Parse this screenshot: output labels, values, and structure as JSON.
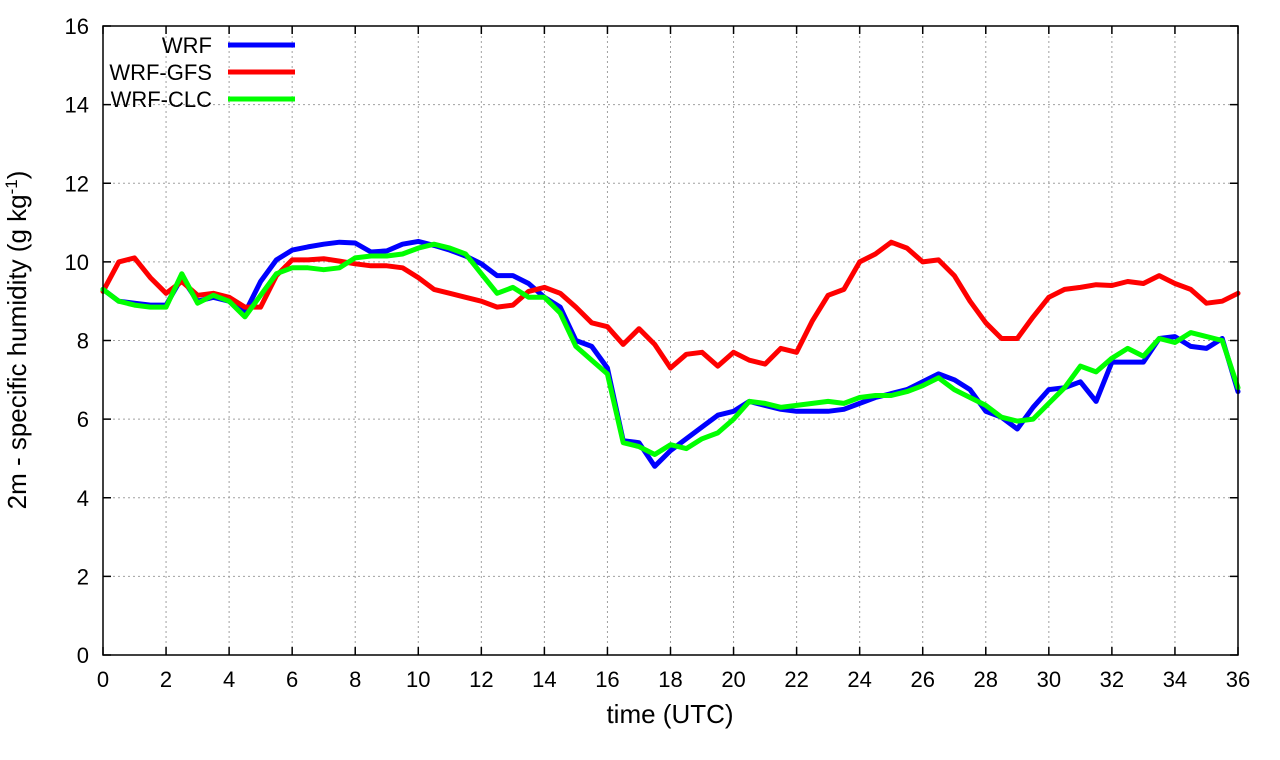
{
  "chart_data": {
    "type": "line",
    "title": "",
    "xlabel": "time (UTC)",
    "ylabel": {
      "base": "2m - specific humidity (g kg",
      "sup": "-1",
      "end": ")"
    },
    "xlim": [
      0,
      36
    ],
    "ylim": [
      0,
      16
    ],
    "xticks": [
      0,
      2,
      4,
      6,
      8,
      10,
      12,
      14,
      16,
      18,
      20,
      22,
      24,
      26,
      28,
      30,
      32,
      34,
      36
    ],
    "yticks": [
      0,
      2,
      4,
      6,
      8,
      10,
      12,
      14,
      16
    ],
    "grid": true,
    "legend": "top-left",
    "x": [
      0,
      0.5,
      1,
      1.5,
      2,
      2.5,
      3,
      3.5,
      4,
      4.5,
      5,
      5.5,
      6,
      6.5,
      7,
      7.5,
      8,
      8.5,
      9,
      9.5,
      10,
      10.5,
      11,
      11.5,
      12,
      12.5,
      13,
      13.5,
      14,
      14.5,
      15,
      15.5,
      16,
      16.5,
      17,
      17.5,
      18,
      18.5,
      19,
      19.5,
      20,
      20.5,
      21,
      21.5,
      22,
      22.5,
      23,
      23.5,
      24,
      24.5,
      25,
      25.5,
      26,
      26.5,
      27,
      27.5,
      28,
      28.5,
      29,
      29.5,
      30,
      30.5,
      31,
      31.5,
      32,
      32.5,
      33,
      33.5,
      34,
      34.5,
      35,
      35.5,
      36
    ],
    "series": [
      {
        "name": "WRF",
        "color": "#0000ff",
        "values": [
          9.3,
          9.0,
          8.95,
          8.9,
          8.9,
          9.6,
          9.0,
          9.1,
          9.0,
          8.7,
          9.5,
          10.05,
          10.3,
          10.38,
          10.45,
          10.5,
          10.48,
          10.25,
          10.28,
          10.45,
          10.52,
          10.42,
          10.3,
          10.15,
          9.95,
          9.65,
          9.65,
          9.45,
          9.1,
          8.85,
          8.0,
          7.85,
          7.3,
          5.45,
          5.4,
          4.8,
          5.2,
          5.5,
          5.8,
          6.1,
          6.2,
          6.45,
          6.35,
          6.25,
          6.2,
          6.2,
          6.2,
          6.25,
          6.4,
          6.55,
          6.65,
          6.75,
          6.95,
          7.15,
          7.0,
          6.75,
          6.2,
          6.05,
          5.75,
          6.3,
          6.75,
          6.8,
          6.95,
          6.45,
          7.45,
          7.45,
          7.45,
          8.05,
          8.1,
          7.85,
          7.8,
          8.05,
          6.7
        ]
      },
      {
        "name": "WRF-GFS",
        "color": "#ff0000",
        "values": [
          9.25,
          10.0,
          10.1,
          9.6,
          9.2,
          9.5,
          9.15,
          9.2,
          9.1,
          8.85,
          8.85,
          9.65,
          10.05,
          10.05,
          10.08,
          10.02,
          9.95,
          9.9,
          9.9,
          9.85,
          9.6,
          9.3,
          9.2,
          9.1,
          9.0,
          8.85,
          8.9,
          9.25,
          9.35,
          9.2,
          8.85,
          8.45,
          8.35,
          7.9,
          8.3,
          7.9,
          7.3,
          7.65,
          7.7,
          7.35,
          7.7,
          7.5,
          7.4,
          7.8,
          7.7,
          8.5,
          9.15,
          9.3,
          10.0,
          10.2,
          10.5,
          10.35,
          10.0,
          10.05,
          9.65,
          9.0,
          8.45,
          8.05,
          8.05,
          8.6,
          9.1,
          9.3,
          9.35,
          9.42,
          9.4,
          9.5,
          9.45,
          9.65,
          9.45,
          9.3,
          8.95,
          9.0,
          9.2
        ]
      },
      {
        "name": "WRF-CLC",
        "color": "#00ff00",
        "values": [
          9.3,
          9.0,
          8.9,
          8.85,
          8.85,
          9.7,
          8.95,
          9.15,
          9.0,
          8.6,
          9.15,
          9.7,
          9.85,
          9.85,
          9.8,
          9.85,
          10.1,
          10.15,
          10.15,
          10.2,
          10.35,
          10.45,
          10.35,
          10.2,
          9.7,
          9.2,
          9.35,
          9.1,
          9.1,
          8.7,
          7.85,
          7.5,
          7.15,
          5.4,
          5.3,
          5.1,
          5.35,
          5.25,
          5.5,
          5.65,
          6.0,
          6.45,
          6.4,
          6.3,
          6.35,
          6.4,
          6.45,
          6.4,
          6.55,
          6.6,
          6.6,
          6.7,
          6.85,
          7.05,
          6.75,
          6.55,
          6.35,
          6.05,
          5.95,
          6.0,
          6.4,
          6.8,
          7.35,
          7.2,
          7.55,
          7.8,
          7.6,
          8.05,
          7.95,
          8.2,
          8.1,
          8.0,
          6.8
        ]
      }
    ]
  }
}
